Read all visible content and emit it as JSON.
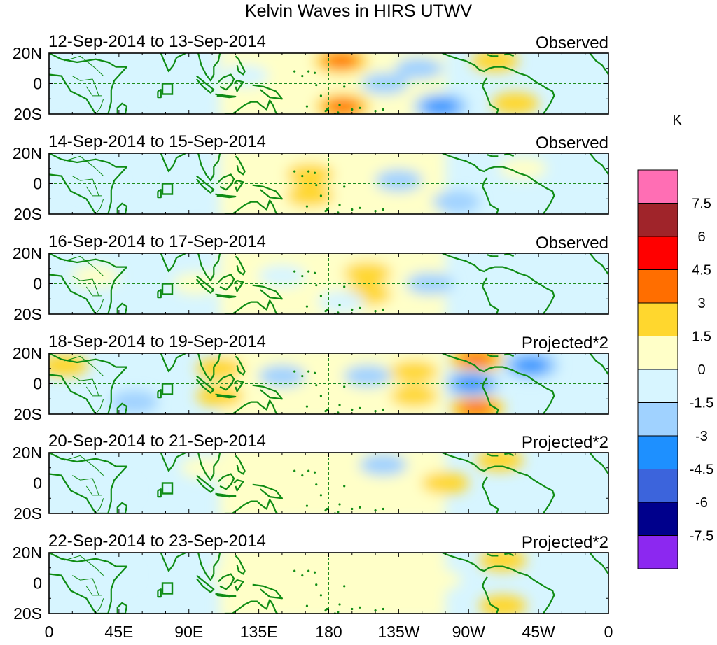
{
  "chart_data": {
    "type": "heatmap",
    "title": "Kelvin Waves in HIRS UTWV",
    "x_tick_labels": [
      "0",
      "45E",
      "90E",
      "135E",
      "180",
      "135W",
      "90W",
      "45W",
      "0"
    ],
    "y_tick_labels": [
      "20N",
      "0",
      "20S"
    ],
    "xlim": [
      0,
      360
    ],
    "ylim": [
      -20,
      20
    ],
    "panels": [
      {
        "date_range": "12-Sep-2014 to 13-Sep-2014",
        "kind": "Observed",
        "anomalies": [
          {
            "lon": 0,
            "lat": 0,
            "value": -1.0
          },
          {
            "lon": 82,
            "lat": -3,
            "value": -0.7
          },
          {
            "lon": 188,
            "lat": 15,
            "value": 3.5
          },
          {
            "lon": 189,
            "lat": -15,
            "value": 3.5
          },
          {
            "lon": 216,
            "lat": 0,
            "value": -1.5
          },
          {
            "lon": 238,
            "lat": 10,
            "value": -2.0
          },
          {
            "lon": 252,
            "lat": -15,
            "value": -3.5
          },
          {
            "lon": 287,
            "lat": 15,
            "value": 2.0
          },
          {
            "lon": 300,
            "lat": -13,
            "value": 2.0
          },
          {
            "lon": 126,
            "lat": 5,
            "value": -0.8
          }
        ]
      },
      {
        "date_range": "14-Sep-2014 to 15-Sep-2014",
        "kind": "Observed",
        "anomalies": [
          {
            "lon": 168,
            "lat": 6,
            "value": 2.0
          },
          {
            "lon": 168,
            "lat": -8,
            "value": 2.0
          },
          {
            "lon": 210,
            "lat": 12,
            "value": 0.8
          },
          {
            "lon": 225,
            "lat": 2,
            "value": -1.8
          },
          {
            "lon": 262,
            "lat": -12,
            "value": -1.8
          },
          {
            "lon": 95,
            "lat": 0,
            "value": -1.0
          },
          {
            "lon": 30,
            "lat": 0,
            "value": -0.8
          },
          {
            "lon": 305,
            "lat": 10,
            "value": 0.7
          }
        ]
      },
      {
        "date_range": "16-Sep-2014 to 17-Sep-2014",
        "kind": "Observed",
        "anomalies": [
          {
            "lon": 205,
            "lat": 7,
            "value": 2.0
          },
          {
            "lon": 205,
            "lat": -7,
            "value": 2.0
          },
          {
            "lon": 245,
            "lat": 0,
            "value": -1.8
          },
          {
            "lon": 188,
            "lat": -12,
            "value": -0.8
          },
          {
            "lon": 150,
            "lat": 5,
            "value": -0.8
          },
          {
            "lon": 95,
            "lat": 0,
            "value": 0.8
          },
          {
            "lon": 30,
            "lat": 5,
            "value": 0.7
          }
        ]
      },
      {
        "date_range": "18-Sep-2014 to 19-Sep-2014",
        "kind": "Projected*2",
        "anomalies": [
          {
            "lon": 235,
            "lat": 8,
            "value": 2.0
          },
          {
            "lon": 235,
            "lat": -8,
            "value": 2.0
          },
          {
            "lon": 275,
            "lat": 16,
            "value": 4.0
          },
          {
            "lon": 275,
            "lat": -16,
            "value": 4.0
          },
          {
            "lon": 272,
            "lat": 0,
            "value": -3.5
          },
          {
            "lon": 310,
            "lat": 12,
            "value": -3.2
          },
          {
            "lon": 205,
            "lat": 5,
            "value": -1.8
          },
          {
            "lon": 110,
            "lat": 10,
            "value": 2.0
          },
          {
            "lon": 110,
            "lat": -8,
            "value": 2.0
          },
          {
            "lon": 150,
            "lat": 5,
            "value": -1.5
          },
          {
            "lon": 55,
            "lat": -12,
            "value": -1.8
          },
          {
            "lon": 10,
            "lat": 12,
            "value": 1.5
          }
        ]
      },
      {
        "date_range": "20-Sep-2014 to 21-Sep-2014",
        "kind": "Projected*2",
        "anomalies": [
          {
            "lon": 255,
            "lat": 0,
            "value": 1.6
          },
          {
            "lon": 290,
            "lat": 15,
            "value": 2.0
          },
          {
            "lon": 215,
            "lat": 12,
            "value": -1.6
          },
          {
            "lon": 160,
            "lat": 5,
            "value": 0.8
          },
          {
            "lon": 100,
            "lat": 10,
            "value": 0.7
          },
          {
            "lon": 40,
            "lat": -5,
            "value": -0.6
          }
        ]
      },
      {
        "date_range": "22-Sep-2014 to 23-Sep-2014",
        "kind": "Projected*2",
        "anomalies": [
          {
            "lon": 292,
            "lat": 15,
            "value": 1.8
          },
          {
            "lon": 292,
            "lat": -15,
            "value": 1.8
          },
          {
            "lon": 250,
            "lat": 2,
            "value": 0.8
          },
          {
            "lon": 180,
            "lat": 3,
            "value": 0.7
          },
          {
            "lon": 120,
            "lat": 5,
            "value": 0.6
          },
          {
            "lon": 40,
            "lat": 5,
            "value": -0.6
          }
        ]
      }
    ],
    "colorbar": {
      "unit": "K",
      "labels": [
        "7.5",
        "6",
        "4.5",
        "3",
        "1.5",
        "0",
        "-1.5",
        "-3",
        "-4.5",
        "-6",
        "-7.5"
      ],
      "colors_top_to_bottom": [
        "#ff6eb4",
        "#a0242a",
        "#ff0000",
        "#ff6e00",
        "#ffd72e",
        "#ffffc8",
        "#d7f5ff",
        "#a0d2ff",
        "#1e90ff",
        "#3c64dc",
        "#00008c",
        "#8c28f0"
      ]
    },
    "colors": {
      "coastline": "#0f8c14",
      "zero_line": "#1e8c1e"
    }
  }
}
